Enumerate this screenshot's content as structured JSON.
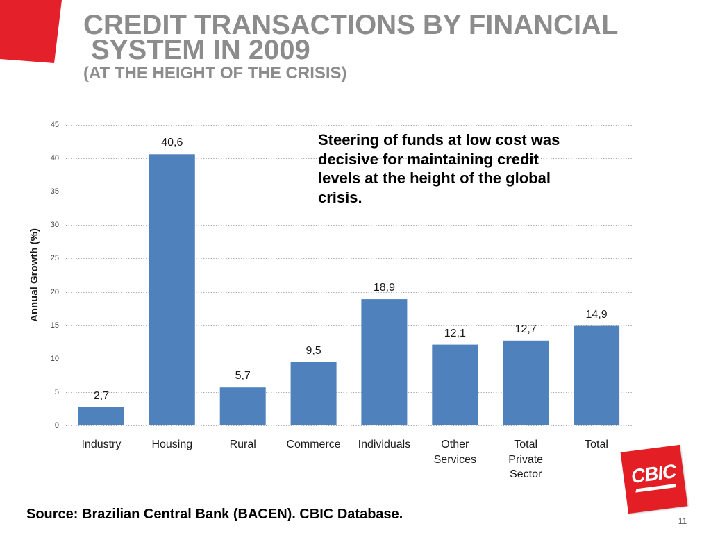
{
  "slide": {
    "title_line1": "CREDIT TRANSACTIONS BY FINANCIAL",
    "title_line2": " SYSTEM IN 2009",
    "subtitle": "(AT THE HEIGHT OF THE CRISIS)",
    "annotation": "Steering of funds at low cost was decisive for maintaining credit levels at the height of the global crisis.",
    "source": "Source: Brazilian Central Bank (BACEN). CBIC Database.",
    "page_number": "11"
  },
  "logo": {
    "text": "CBIC"
  },
  "colors": {
    "accent_red": "#e4212a",
    "logo_red": "#e31e24",
    "title_gray": "#8c8c8c"
  },
  "chart_data": {
    "type": "bar",
    "ylabel": "Annual Growth (%)",
    "categories": [
      "Industry",
      "Housing",
      "Rural",
      "Commerce",
      "Individuals",
      "Other Services",
      "Total Private Sector",
      "Total"
    ],
    "values": [
      2.7,
      40.6,
      5.7,
      9.5,
      18.9,
      12.1,
      12.7,
      14.9
    ],
    "value_labels": [
      "2,7",
      "40,6",
      "5,7",
      "9,5",
      "18,9",
      "12,1",
      "12,7",
      "14,9"
    ],
    "ylim": [
      0,
      45
    ],
    "yticks": [
      0,
      5,
      10,
      15,
      20,
      25,
      30,
      35,
      40,
      45
    ],
    "grid": true,
    "bar_color": "#4f81bd"
  }
}
